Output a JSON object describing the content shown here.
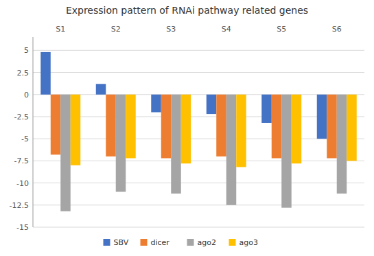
{
  "chart_data": {
    "type": "bar",
    "title": "Expression pattern of RNAi pathway related genes",
    "categories": [
      "S1",
      "S2",
      "S3",
      "S4",
      "S5",
      "S6"
    ],
    "series": [
      {
        "name": "SBV",
        "color": "#4472C4",
        "values": [
          4.8,
          1.2,
          -2.0,
          -2.2,
          -3.2,
          -5.0
        ]
      },
      {
        "name": "dicer",
        "color": "#ED7D31",
        "values": [
          -6.8,
          -7.0,
          -7.2,
          -7.0,
          -7.2,
          -7.2
        ]
      },
      {
        "name": "ago2",
        "color": "#A5A5A5",
        "values": [
          -13.2,
          -11.0,
          -11.2,
          -12.5,
          -12.8,
          -11.2
        ]
      },
      {
        "name": "ago3",
        "color": "#FFC000",
        "values": [
          -8.0,
          -7.2,
          -7.8,
          -8.2,
          -7.8,
          -7.5
        ]
      }
    ],
    "ylim": [
      -15,
      6.5
    ],
    "yticks": [
      -15,
      -12.5,
      -10,
      -7.5,
      -5,
      -2.5,
      0,
      2.5,
      5
    ],
    "grid": true,
    "legend": "bottom"
  }
}
